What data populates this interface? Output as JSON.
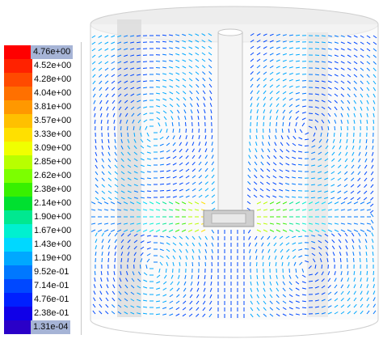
{
  "legend": {
    "labels": [
      "4.76e+00",
      "4.52e+00",
      "4.28e+00",
      "4.04e+00",
      "3.81e+00",
      "3.57e+00",
      "3.33e+00",
      "3.09e+00",
      "2.85e+00",
      "2.62e+00",
      "2.38e+00",
      "2.14e+00",
      "1.90e+00",
      "1.67e+00",
      "1.43e+00",
      "1.19e+00",
      "9.52e-01",
      "7.14e-01",
      "4.76e-01",
      "2.38e-01",
      "1.31e-04"
    ],
    "colors": [
      "#ff0000",
      "#ff2200",
      "#ff4a00",
      "#ff7000",
      "#ff9800",
      "#ffc000",
      "#ffe000",
      "#f0ff00",
      "#b8ff00",
      "#7cff00",
      "#38f000",
      "#00e030",
      "#00e890",
      "#00f0d0",
      "#00d8ff",
      "#00a8ff",
      "#0078ff",
      "#0048ff",
      "#0020ff",
      "#1000e8",
      "#2a00c8"
    ]
  },
  "colors": {
    "tank_wall": "#e6e6e6",
    "baffle": "#d6d6d6",
    "shaft": "#f2f2f2"
  }
}
